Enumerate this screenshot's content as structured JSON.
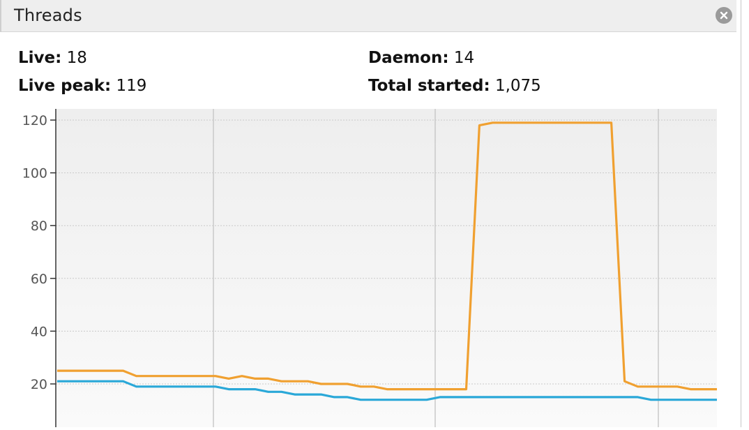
{
  "window": {
    "title": "Threads",
    "close_icon": "close-circle-icon"
  },
  "stats": {
    "live_label": "Live:",
    "live_value": "18",
    "live_peak_label": "Live peak:",
    "live_peak_value": "119",
    "daemon_label": "Daemon:",
    "daemon_value": "14",
    "total_started_label": "Total started:",
    "total_started_value": "1,075"
  },
  "colors": {
    "live": "#f0a030",
    "daemon": "#2aa8d8",
    "plot_bg": "#f1f1f1",
    "gridline": "#c9c9c9"
  },
  "chart_data": {
    "type": "line",
    "title": "",
    "xlabel": "",
    "ylabel": "",
    "ylim": [
      0,
      125
    ],
    "yticks": [
      "20",
      "40",
      "60",
      "80",
      "100",
      "120"
    ],
    "grid": true,
    "x": [
      0,
      2,
      4,
      6,
      8,
      10,
      12,
      14,
      16,
      18,
      20,
      22,
      24,
      26,
      28,
      30,
      32,
      34,
      36,
      38,
      40,
      42,
      44,
      46,
      48,
      50,
      52,
      54,
      56,
      58,
      60,
      62,
      64,
      66,
      68,
      70,
      72,
      74,
      76,
      78,
      80,
      82,
      84,
      86,
      88,
      90,
      92,
      94,
      96,
      98,
      100
    ],
    "series": [
      {
        "key": "live",
        "values": [
          25,
          25,
          25,
          25,
          25,
          25,
          23,
          23,
          23,
          23,
          23,
          23,
          23,
          22,
          23,
          22,
          22,
          21,
          21,
          21,
          20,
          20,
          20,
          19,
          19,
          18,
          18,
          18,
          18,
          18,
          18,
          18,
          118,
          119,
          119,
          119,
          119,
          119,
          119,
          119,
          119,
          119,
          119,
          21,
          19,
          19,
          19,
          19,
          18,
          18,
          18
        ]
      },
      {
        "key": "daemon",
        "values": [
          21,
          21,
          21,
          21,
          21,
          21,
          19,
          19,
          19,
          19,
          19,
          19,
          19,
          18,
          18,
          18,
          17,
          17,
          16,
          16,
          16,
          15,
          15,
          14,
          14,
          14,
          14,
          14,
          14,
          15,
          15,
          15,
          15,
          15,
          15,
          15,
          15,
          15,
          15,
          15,
          15,
          15,
          15,
          15,
          15,
          14,
          14,
          14,
          14,
          14,
          14
        ]
      }
    ]
  }
}
